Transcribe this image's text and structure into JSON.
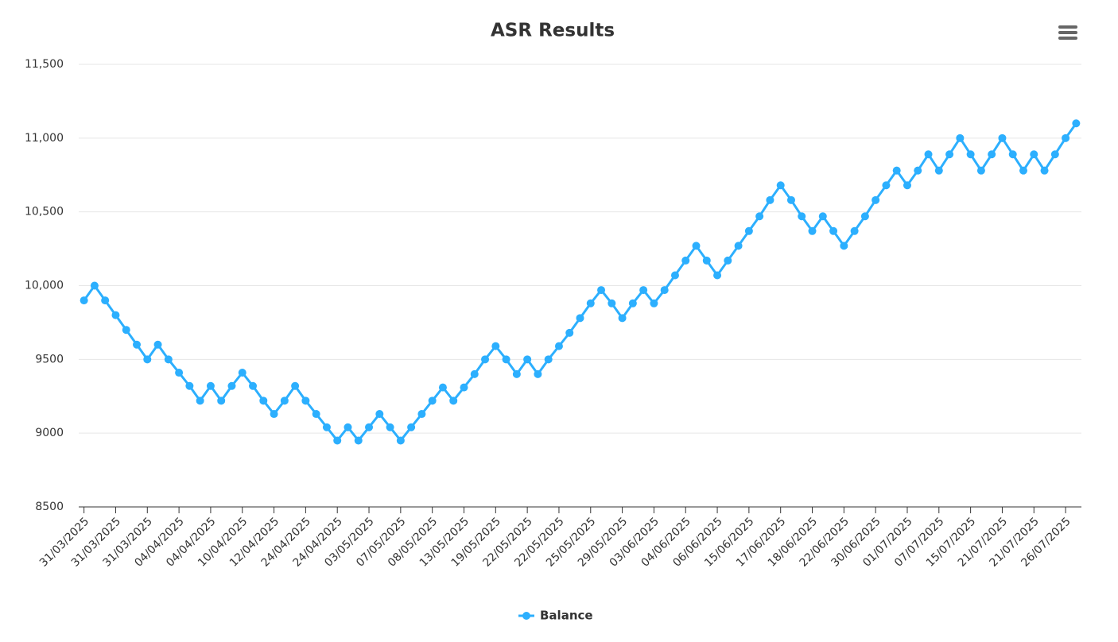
{
  "chart_data": {
    "type": "line",
    "title": "ASR Results",
    "categories": [
      "31/03/2025",
      null,
      null,
      "31/03/2025",
      null,
      null,
      "31/03/2025",
      null,
      null,
      "04/04/2025",
      null,
      null,
      "04/04/2025",
      null,
      null,
      "10/04/2025",
      null,
      null,
      "12/04/2025",
      null,
      null,
      "24/04/2025",
      null,
      null,
      "24/04/2025",
      null,
      null,
      "03/05/2025",
      null,
      null,
      "07/05/2025",
      null,
      null,
      "08/05/2025",
      null,
      null,
      "13/05/2025",
      null,
      null,
      "19/05/2025",
      null,
      null,
      "22/05/2025",
      null,
      null,
      "22/05/2025",
      null,
      null,
      "25/05/2025",
      null,
      null,
      "29/05/2025",
      null,
      null,
      "03/06/2025",
      null,
      null,
      "04/06/2025",
      null,
      null,
      "06/06/2025",
      null,
      null,
      "15/06/2025",
      null,
      null,
      "17/06/2025",
      null,
      null,
      "18/06/2025",
      null,
      null,
      "22/06/2025",
      null,
      null,
      "30/06/2025",
      null,
      null,
      "01/07/2025",
      null,
      null,
      "07/07/2025",
      null,
      null,
      "15/07/2025",
      null,
      null,
      "21/07/2025",
      null,
      null,
      "21/07/2025",
      null,
      null,
      "26/07/2025",
      null
    ],
    "series": [
      {
        "name": "Balance",
        "color": "#2caffe",
        "values": [
          9900,
          10000,
          9900,
          9800,
          9700,
          9600,
          9500,
          9600,
          9500,
          9410,
          9320,
          9220,
          9320,
          9220,
          9320,
          9410,
          9320,
          9220,
          9130,
          9220,
          9320,
          9220,
          9130,
          9040,
          8950,
          9040,
          8950,
          9040,
          9130,
          9040,
          8950,
          9040,
          9130,
          9220,
          9310,
          9220,
          9310,
          9400,
          9500,
          9590,
          9500,
          9400,
          9500,
          9400,
          9500,
          9590,
          9680,
          9780,
          9880,
          9970,
          9880,
          9780,
          9880,
          9970,
          9880,
          9970,
          10070,
          10170,
          10270,
          10170,
          10070,
          10170,
          10270,
          10370,
          10470,
          10580,
          10680,
          10580,
          10470,
          10370,
          10470,
          10370,
          10270,
          10370,
          10470,
          10580,
          10680,
          10780,
          10680,
          10780,
          10890,
          10780,
          10890,
          11000,
          10890,
          10780,
          10890,
          11000,
          10890,
          10780,
          10890,
          10780,
          10890,
          11000,
          11100
        ]
      }
    ],
    "ylim": [
      8500,
      11500
    ],
    "yticks": [
      8500,
      9000,
      9500,
      {
        "value": 10000,
        "label": "10,000"
      },
      {
        "value": 10500,
        "label": "10,500"
      },
      {
        "value": 11000,
        "label": "11,000"
      },
      {
        "value": 11500,
        "label": "11,500"
      }
    ],
    "grid": true,
    "legend": "bottom"
  }
}
